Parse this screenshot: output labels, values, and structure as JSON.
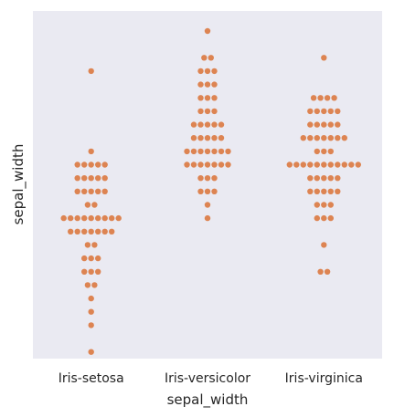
{
  "chart_data": {
    "type": "scatter",
    "subtype": "swarm",
    "title": "",
    "xlabel": "sepal_width",
    "ylabel": "sepal_width",
    "categories": [
      "Iris-setosa",
      "Iris-versicolor",
      "Iris-virginica"
    ],
    "y_ticks_shown": false,
    "grid": false,
    "legend": "none",
    "ylim": [
      0.5,
      26.5
    ],
    "point_rows": [
      [
        {
          "level": 1,
          "count": 1
        },
        {
          "level": 3,
          "count": 1
        },
        {
          "level": 4,
          "count": 1
        },
        {
          "level": 5,
          "count": 1
        },
        {
          "level": 6,
          "count": 2
        },
        {
          "level": 7,
          "count": 3
        },
        {
          "level": 8,
          "count": 3
        },
        {
          "level": 9,
          "count": 2
        },
        {
          "level": 10,
          "count": 7
        },
        {
          "level": 11,
          "count": 9
        },
        {
          "level": 12,
          "count": 2
        },
        {
          "level": 13,
          "count": 5
        },
        {
          "level": 14,
          "count": 5
        },
        {
          "level": 15,
          "count": 5
        },
        {
          "level": 16,
          "count": 1
        },
        {
          "level": 22,
          "count": 1
        }
      ],
      [
        {
          "level": 11,
          "count": 1
        },
        {
          "level": 12,
          "count": 1
        },
        {
          "level": 13,
          "count": 3
        },
        {
          "level": 14,
          "count": 3
        },
        {
          "level": 15,
          "count": 7
        },
        {
          "level": 16,
          "count": 7
        },
        {
          "level": 17,
          "count": 5
        },
        {
          "level": 18,
          "count": 5
        },
        {
          "level": 19,
          "count": 3
        },
        {
          "level": 20,
          "count": 3
        },
        {
          "level": 21,
          "count": 3
        },
        {
          "level": 22,
          "count": 3
        },
        {
          "level": 23,
          "count": 2
        },
        {
          "level": 25,
          "count": 1
        }
      ],
      [
        {
          "level": 7,
          "count": 2
        },
        {
          "level": 9,
          "count": 1
        },
        {
          "level": 11,
          "count": 3
        },
        {
          "level": 12,
          "count": 3
        },
        {
          "level": 13,
          "count": 5
        },
        {
          "level": 14,
          "count": 5
        },
        {
          "level": 15,
          "count": 11
        },
        {
          "level": 16,
          "count": 3
        },
        {
          "level": 17,
          "count": 7
        },
        {
          "level": 18,
          "count": 5
        },
        {
          "level": 19,
          "count": 5
        },
        {
          "level": 20,
          "count": 4
        },
        {
          "level": 23,
          "count": 1
        }
      ]
    ]
  },
  "colors": {
    "background": "#eaeaf2",
    "point": "#dd8452"
  }
}
